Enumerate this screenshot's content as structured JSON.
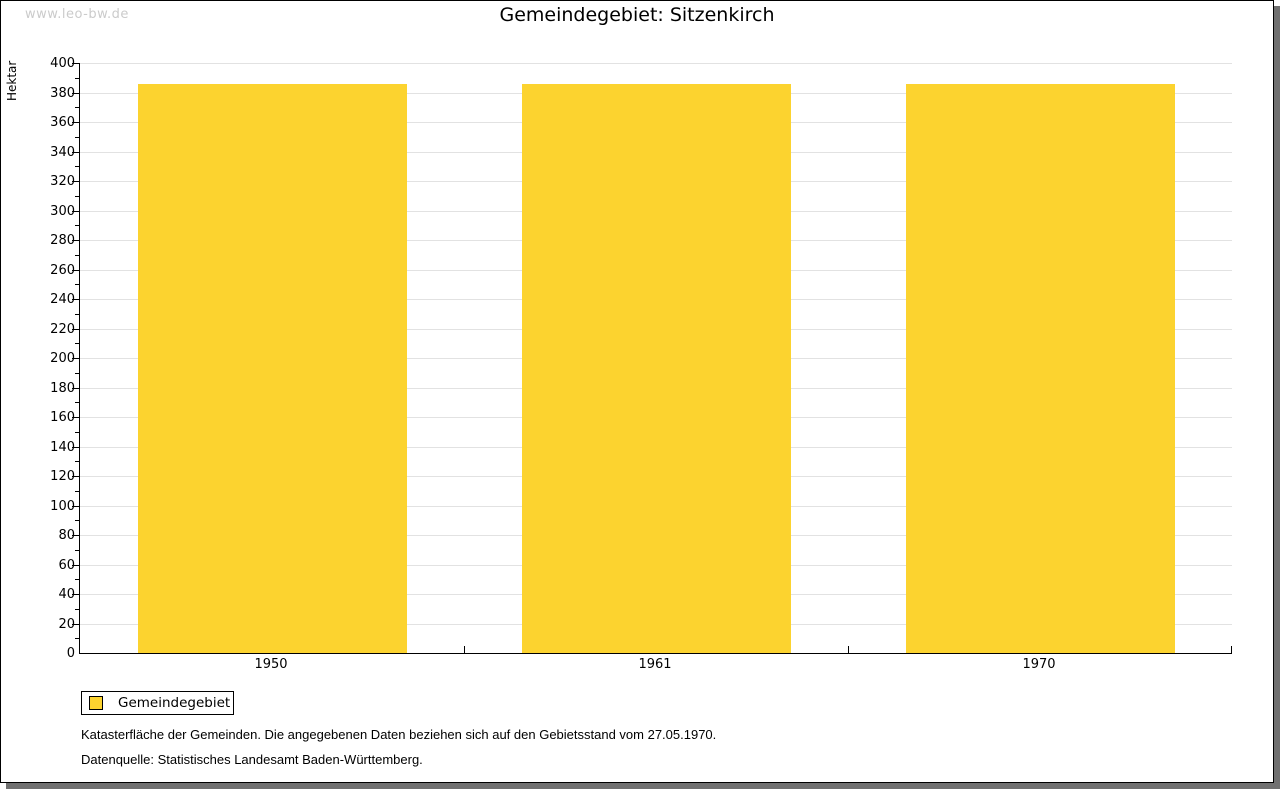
{
  "watermark": "www.leo-bw.de",
  "chart_data": {
    "type": "bar",
    "title": "Gemeindegebiet: Sitzenkirch",
    "categories": [
      "1950",
      "1961",
      "1970"
    ],
    "series": [
      {
        "name": "Gemeindegebiet",
        "values": [
          386,
          386,
          386
        ],
        "color": "#fcd32f"
      }
    ],
    "xlabel": "",
    "ylabel": "Hektar",
    "ylim": [
      0,
      400
    ],
    "ytick_step": 20,
    "yminor_step": 10,
    "grid": true,
    "legend_position": "bottom-left"
  },
  "legend": {
    "label": "Gemeindegebiet",
    "swatch_color": "#fcd32f"
  },
  "footer": {
    "line1": "Katasterfläche der Gemeinden. Die angegebenen Daten beziehen sich auf den Gebietsstand vom 27.05.1970.",
    "line2": "Datenquelle: Statistisches Landesamt Baden-Württemberg."
  },
  "colors": {
    "bar": "#fcd32f",
    "gridline": "#e2e2e2",
    "axis": "#000000",
    "page_shadow": "#707070",
    "watermark_text": "#cbcbcb"
  }
}
